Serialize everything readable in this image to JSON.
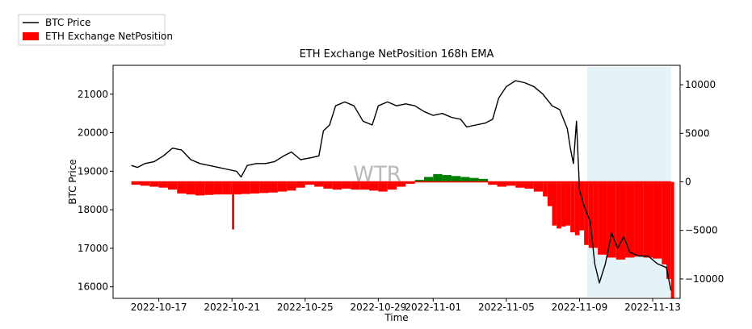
{
  "chart_data": {
    "type": "bar",
    "title": "ETH Exchange NetPosition 168h EMA",
    "xlabel": "Time",
    "ylabel": "BTC Price",
    "y2label": "",
    "watermark": "WTR",
    "x_range": [
      "2022-10-14T12:00",
      "2022-11-14T12:00"
    ],
    "x_ticks": [
      "2022-10-17",
      "2022-10-21",
      "2022-10-25",
      "2022-10-29",
      "2022-11-01",
      "2022-11-05",
      "2022-11-09",
      "2022-11-13"
    ],
    "ylim": [
      15700,
      21750
    ],
    "y_ticks": [
      16000,
      17000,
      18000,
      19000,
      20000,
      21000
    ],
    "y2lim": [
      -12000,
      12000
    ],
    "y2_ticks": [
      10000,
      5000,
      0,
      -5000,
      -10000
    ],
    "y2_tick_labels": [
      "10000",
      "5000",
      "0",
      "−5000",
      "−10000"
    ],
    "legend": {
      "placement": "top-left",
      "items": [
        {
          "label": "BTC Price",
          "kind": "line",
          "color": "#000000"
        },
        {
          "label": "ETH Exchange NetPosition",
          "kind": "patch",
          "color": "#ff0000"
        }
      ]
    },
    "colors": {
      "positive": "#008000",
      "negative": "#ff0000",
      "line": "#000000",
      "shade": "#e3f3f8"
    },
    "shaded_region": [
      "2022-11-09T10:00",
      "2022-11-14T00:00"
    ],
    "series": [
      {
        "name": "BTC Price",
        "kind": "line",
        "axis": "left",
        "points": [
          [
            "2022-10-15T12:00",
            19150
          ],
          [
            "2022-10-15T20:00",
            19100
          ],
          [
            "2022-10-16T06:00",
            19200
          ],
          [
            "2022-10-16T18:00",
            19250
          ],
          [
            "2022-10-17T06:00",
            19400
          ],
          [
            "2022-10-17T18:00",
            19600
          ],
          [
            "2022-10-18T06:00",
            19550
          ],
          [
            "2022-10-18T18:00",
            19300
          ],
          [
            "2022-10-19T06:00",
            19200
          ],
          [
            "2022-10-19T18:00",
            19150
          ],
          [
            "2022-10-20T06:00",
            19100
          ],
          [
            "2022-10-20T18:00",
            19050
          ],
          [
            "2022-10-21T06:00",
            19000
          ],
          [
            "2022-10-21T12:00",
            18850
          ],
          [
            "2022-10-21T20:00",
            19150
          ],
          [
            "2022-10-22T08:00",
            19200
          ],
          [
            "2022-10-22T20:00",
            19200
          ],
          [
            "2022-10-23T08:00",
            19250
          ],
          [
            "2022-10-23T20:00",
            19400
          ],
          [
            "2022-10-24T06:00",
            19500
          ],
          [
            "2022-10-24T18:00",
            19300
          ],
          [
            "2022-10-25T08:00",
            19350
          ],
          [
            "2022-10-25T18:00",
            19400
          ],
          [
            "2022-10-26T00:00",
            20050
          ],
          [
            "2022-10-26T08:00",
            20200
          ],
          [
            "2022-10-26T16:00",
            20700
          ],
          [
            "2022-10-27T04:00",
            20800
          ],
          [
            "2022-10-27T16:00",
            20700
          ],
          [
            "2022-10-28T04:00",
            20300
          ],
          [
            "2022-10-28T16:00",
            20200
          ],
          [
            "2022-10-29T00:00",
            20700
          ],
          [
            "2022-10-29T12:00",
            20800
          ],
          [
            "2022-10-30T00:00",
            20700
          ],
          [
            "2022-10-30T12:00",
            20750
          ],
          [
            "2022-10-31T00:00",
            20700
          ],
          [
            "2022-10-31T12:00",
            20550
          ],
          [
            "2022-11-01T00:00",
            20450
          ],
          [
            "2022-11-01T12:00",
            20500
          ],
          [
            "2022-11-02T00:00",
            20400
          ],
          [
            "2022-11-02T12:00",
            20350
          ],
          [
            "2022-11-02T20:00",
            20150
          ],
          [
            "2022-11-03T08:00",
            20200
          ],
          [
            "2022-11-03T20:00",
            20250
          ],
          [
            "2022-11-04T06:00",
            20350
          ],
          [
            "2022-11-04T14:00",
            20900
          ],
          [
            "2022-11-05T00:00",
            21200
          ],
          [
            "2022-11-05T12:00",
            21350
          ],
          [
            "2022-11-06T00:00",
            21300
          ],
          [
            "2022-11-06T12:00",
            21200
          ],
          [
            "2022-11-07T00:00",
            21000
          ],
          [
            "2022-11-07T12:00",
            20700
          ],
          [
            "2022-11-07T22:00",
            20600
          ],
          [
            "2022-11-08T08:00",
            20100
          ],
          [
            "2022-11-08T12:00",
            19600
          ],
          [
            "2022-11-08T16:00",
            19200
          ],
          [
            "2022-11-08T20:00",
            20300
          ],
          [
            "2022-11-09T00:00",
            18500
          ],
          [
            "2022-11-09T06:00",
            18100
          ],
          [
            "2022-11-09T14:00",
            17700
          ],
          [
            "2022-11-09T20:00",
            16600
          ],
          [
            "2022-11-10T02:00",
            16100
          ],
          [
            "2022-11-10T10:00",
            16600
          ],
          [
            "2022-11-10T18:00",
            17400
          ],
          [
            "2022-11-11T02:00",
            17000
          ],
          [
            "2022-11-11T10:00",
            17300
          ],
          [
            "2022-11-11T18:00",
            16900
          ],
          [
            "2022-11-12T06:00",
            16800
          ],
          [
            "2022-11-12T18:00",
            16800
          ],
          [
            "2022-11-13T06:00",
            16600
          ],
          [
            "2022-11-13T18:00",
            16500
          ],
          [
            "2022-11-14T00:00",
            15900
          ]
        ]
      },
      {
        "name": "ETH Exchange NetPosition",
        "kind": "bar",
        "axis": "right",
        "points": [
          [
            "2022-10-15T12:00",
            -300
          ],
          [
            "2022-10-16T00:00",
            -400
          ],
          [
            "2022-10-16T12:00",
            -500
          ],
          [
            "2022-10-17T00:00",
            -600
          ],
          [
            "2022-10-17T12:00",
            -800
          ],
          [
            "2022-10-18T00:00",
            -1200
          ],
          [
            "2022-10-18T12:00",
            -1300
          ],
          [
            "2022-10-19T00:00",
            -1400
          ],
          [
            "2022-10-19T12:00",
            -1350
          ],
          [
            "2022-10-20T00:00",
            -1300
          ],
          [
            "2022-10-20T12:00",
            -1300
          ],
          [
            "2022-10-20T22:00",
            -1300
          ],
          [
            "2022-10-21T00:00",
            -4900
          ],
          [
            "2022-10-21T03:00",
            -1300
          ],
          [
            "2022-10-21T12:00",
            -1250
          ],
          [
            "2022-10-22T00:00",
            -1200
          ],
          [
            "2022-10-22T12:00",
            -1150
          ],
          [
            "2022-10-23T00:00",
            -1100
          ],
          [
            "2022-10-23T12:00",
            -1000
          ],
          [
            "2022-10-24T00:00",
            -900
          ],
          [
            "2022-10-24T12:00",
            -600
          ],
          [
            "2022-10-25T00:00",
            -300
          ],
          [
            "2022-10-25T12:00",
            -500
          ],
          [
            "2022-10-26T00:00",
            -700
          ],
          [
            "2022-10-26T12:00",
            -800
          ],
          [
            "2022-10-27T00:00",
            -700
          ],
          [
            "2022-10-27T12:00",
            -800
          ],
          [
            "2022-10-28T00:00",
            -800
          ],
          [
            "2022-10-28T12:00",
            -900
          ],
          [
            "2022-10-29T00:00",
            -1000
          ],
          [
            "2022-10-29T12:00",
            -800
          ],
          [
            "2022-10-30T00:00",
            -500
          ],
          [
            "2022-10-30T12:00",
            -200
          ],
          [
            "2022-10-31T00:00",
            200
          ],
          [
            "2022-10-31T12:00",
            500
          ],
          [
            "2022-11-01T00:00",
            800
          ],
          [
            "2022-11-01T12:00",
            700
          ],
          [
            "2022-11-02T00:00",
            600
          ],
          [
            "2022-11-02T12:00",
            500
          ],
          [
            "2022-11-03T00:00",
            400
          ],
          [
            "2022-11-03T12:00",
            300
          ],
          [
            "2022-11-04T00:00",
            -300
          ],
          [
            "2022-11-04T12:00",
            -500
          ],
          [
            "2022-11-05T00:00",
            -400
          ],
          [
            "2022-11-05T12:00",
            -600
          ],
          [
            "2022-11-06T00:00",
            -700
          ],
          [
            "2022-11-06T12:00",
            -1000
          ],
          [
            "2022-11-07T00:00",
            -1500
          ],
          [
            "2022-11-07T06:00",
            -2500
          ],
          [
            "2022-11-07T12:00",
            -4500
          ],
          [
            "2022-11-07T18:00",
            -4800
          ],
          [
            "2022-11-08T00:00",
            -4600
          ],
          [
            "2022-11-08T06:00",
            -4500
          ],
          [
            "2022-11-08T12:00",
            -5200
          ],
          [
            "2022-11-08T18:00",
            -5500
          ],
          [
            "2022-11-09T00:00",
            -5000
          ],
          [
            "2022-11-09T06:00",
            -6500
          ],
          [
            "2022-11-09T12:00",
            -6800
          ],
          [
            "2022-11-09T18:00",
            -6800
          ],
          [
            "2022-11-10T00:00",
            -7500
          ],
          [
            "2022-11-10T12:00",
            -7800
          ],
          [
            "2022-11-11T00:00",
            -8000
          ],
          [
            "2022-11-11T12:00",
            -7800
          ],
          [
            "2022-11-12T00:00",
            -7700
          ],
          [
            "2022-11-12T12:00",
            -7800
          ],
          [
            "2022-11-13T00:00",
            -7900
          ],
          [
            "2022-11-13T12:00",
            -8500
          ],
          [
            "2022-11-13T18:00",
            -10000
          ],
          [
            "2022-11-14T00:00",
            -12000
          ]
        ]
      }
    ]
  }
}
